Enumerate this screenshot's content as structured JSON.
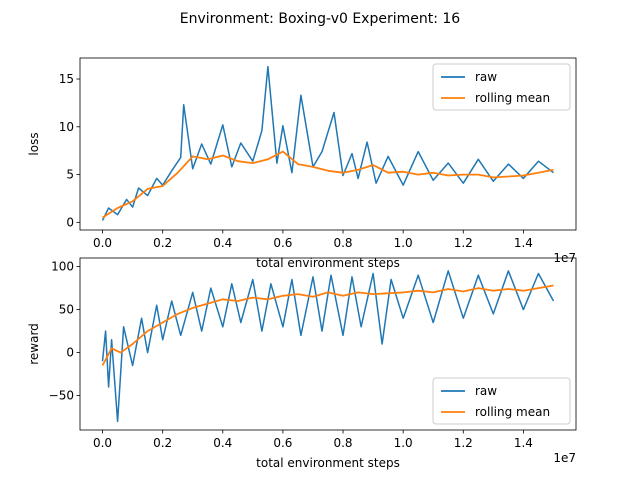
{
  "figure": {
    "suptitle": "Environment: Boxing-v0 Experiment: 16"
  },
  "colors": {
    "raw": "#1f77b4",
    "rolling_mean": "#ff7f0e",
    "axis": "#000000",
    "legend_border": "#cccccc"
  },
  "chart_data": [
    {
      "type": "line",
      "title": "",
      "xlabel": "total environment steps",
      "ylabel": "loss",
      "x_scale_label": "1e7",
      "xlim": [
        -0.075,
        1.575
      ],
      "ylim": [
        -0.8,
        17.2
      ],
      "x_ticks": [
        0.0,
        0.2,
        0.4,
        0.6,
        0.8,
        1.0,
        1.2,
        1.4
      ],
      "x_tick_labels": [
        "0.0",
        "0.2",
        "0.4",
        "0.6",
        "0.8",
        "1.0",
        "1.2",
        "1.4"
      ],
      "y_ticks": [
        0,
        5,
        10,
        15
      ],
      "y_tick_labels": [
        "0",
        "5",
        "10",
        "15"
      ],
      "grid": false,
      "legend": {
        "position": "top-right",
        "entries": [
          "raw",
          "rolling mean"
        ]
      },
      "series": [
        {
          "name": "raw",
          "x": [
            0.0,
            0.02,
            0.05,
            0.08,
            0.1,
            0.12,
            0.15,
            0.18,
            0.2,
            0.23,
            0.26,
            0.27,
            0.3,
            0.33,
            0.36,
            0.4,
            0.43,
            0.46,
            0.5,
            0.53,
            0.55,
            0.58,
            0.6,
            0.63,
            0.66,
            0.7,
            0.73,
            0.77,
            0.8,
            0.83,
            0.85,
            0.88,
            0.91,
            0.95,
            1.0,
            1.05,
            1.1,
            1.15,
            1.2,
            1.25,
            1.3,
            1.35,
            1.4,
            1.45,
            1.5
          ],
          "y": [
            0.2,
            1.5,
            0.8,
            2.4,
            1.6,
            3.6,
            2.8,
            4.6,
            3.9,
            5.4,
            6.8,
            12.3,
            5.6,
            8.2,
            6.1,
            10.2,
            5.8,
            8.3,
            6.4,
            9.6,
            16.3,
            6.2,
            10.1,
            5.2,
            13.3,
            5.8,
            7.4,
            11.5,
            4.9,
            7.2,
            4.6,
            8.4,
            4.1,
            6.9,
            3.9,
            7.4,
            4.4,
            6.2,
            4.1,
            6.6,
            4.3,
            6.1,
            4.6,
            6.4,
            5.2
          ]
        },
        {
          "name": "rolling mean",
          "x": [
            0.0,
            0.05,
            0.1,
            0.15,
            0.2,
            0.25,
            0.3,
            0.35,
            0.4,
            0.45,
            0.5,
            0.55,
            0.6,
            0.65,
            0.7,
            0.75,
            0.8,
            0.85,
            0.9,
            0.95,
            1.0,
            1.05,
            1.1,
            1.15,
            1.2,
            1.25,
            1.3,
            1.35,
            1.4,
            1.45,
            1.5
          ],
          "y": [
            0.5,
            1.5,
            2.2,
            3.5,
            3.8,
            5.2,
            6.9,
            6.6,
            7.0,
            6.4,
            6.2,
            6.6,
            7.4,
            6.1,
            5.8,
            5.4,
            5.2,
            5.5,
            6.0,
            5.2,
            5.3,
            5.0,
            5.2,
            4.9,
            5.0,
            5.0,
            4.7,
            4.8,
            4.9,
            5.2,
            5.5
          ]
        }
      ]
    },
    {
      "type": "line",
      "title": "",
      "xlabel": "total environment steps",
      "ylabel": "reward",
      "x_scale_label": "1e7",
      "xlim": [
        -0.075,
        1.575
      ],
      "ylim": [
        -90,
        110
      ],
      "x_ticks": [
        0.0,
        0.2,
        0.4,
        0.6,
        0.8,
        1.0,
        1.2,
        1.4
      ],
      "x_tick_labels": [
        "0.0",
        "0.2",
        "0.4",
        "0.6",
        "0.8",
        "1.0",
        "1.2",
        "1.4"
      ],
      "y_ticks": [
        -50,
        0,
        50,
        100
      ],
      "y_tick_labels": [
        "−50",
        "0",
        "50",
        "100"
      ],
      "grid": false,
      "legend": {
        "position": "bottom-right",
        "entries": [
          "raw",
          "rolling mean"
        ]
      },
      "series": [
        {
          "name": "raw",
          "x": [
            0.0,
            0.01,
            0.02,
            0.03,
            0.05,
            0.07,
            0.1,
            0.13,
            0.15,
            0.18,
            0.2,
            0.23,
            0.26,
            0.3,
            0.33,
            0.36,
            0.4,
            0.43,
            0.46,
            0.5,
            0.53,
            0.56,
            0.6,
            0.63,
            0.66,
            0.7,
            0.73,
            0.76,
            0.8,
            0.83,
            0.86,
            0.9,
            0.93,
            0.96,
            1.0,
            1.05,
            1.1,
            1.15,
            1.2,
            1.25,
            1.3,
            1.35,
            1.4,
            1.45,
            1.5
          ],
          "y": [
            -10,
            25,
            -40,
            15,
            -80,
            30,
            -15,
            40,
            0,
            55,
            15,
            60,
            20,
            70,
            25,
            75,
            30,
            80,
            35,
            85,
            25,
            80,
            30,
            85,
            20,
            88,
            25,
            90,
            20,
            88,
            30,
            92,
            10,
            85,
            40,
            90,
            35,
            95,
            40,
            90,
            45,
            95,
            50,
            92,
            60
          ]
        },
        {
          "name": "rolling mean",
          "x": [
            0.0,
            0.03,
            0.06,
            0.1,
            0.15,
            0.2,
            0.25,
            0.3,
            0.35,
            0.4,
            0.45,
            0.5,
            0.55,
            0.6,
            0.65,
            0.7,
            0.75,
            0.8,
            0.85,
            0.9,
            0.95,
            1.0,
            1.05,
            1.1,
            1.15,
            1.2,
            1.25,
            1.3,
            1.35,
            1.4,
            1.45,
            1.5
          ],
          "y": [
            -15,
            5,
            0,
            10,
            25,
            35,
            45,
            52,
            57,
            62,
            60,
            64,
            62,
            66,
            68,
            65,
            70,
            66,
            70,
            68,
            69,
            70,
            72,
            70,
            74,
            71,
            75,
            72,
            74,
            72,
            75,
            78
          ]
        }
      ]
    }
  ]
}
